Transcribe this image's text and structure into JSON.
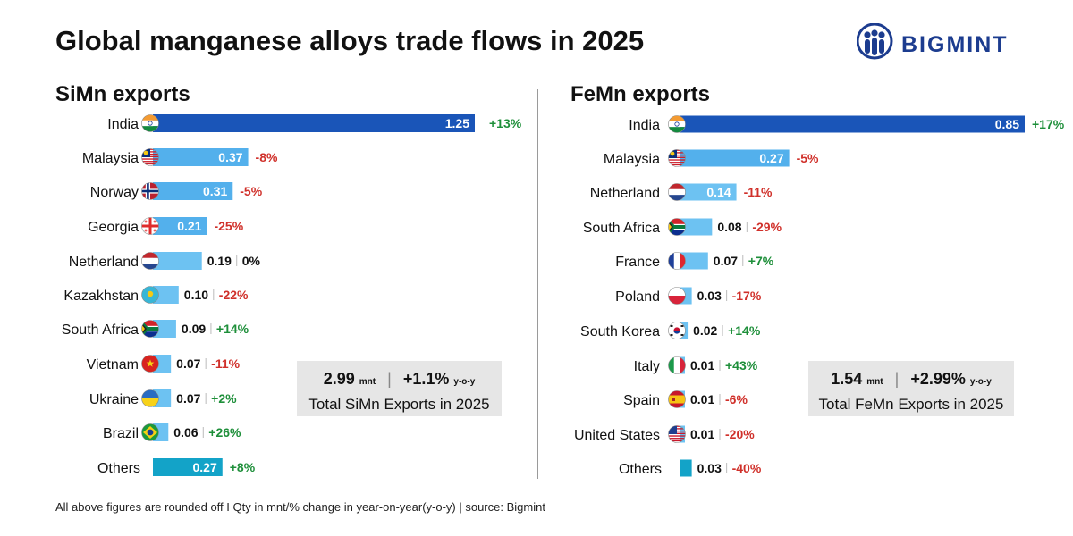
{
  "header": {
    "title": "Global manganese alloys trade flows in 2025",
    "logo_text": "BIGMINT",
    "logo_icon": "bigmint-people-icon"
  },
  "colors": {
    "bar_gradient": [
      "#1a55b8",
      "#1e6fd0",
      "#2c86d9",
      "#3b9be0",
      "#53b0ec",
      "#6dc2f2"
    ],
    "others_bar": "#13a3c8",
    "positive": "#1e8f3a",
    "negative": "#d0302a",
    "neutral": "#111111",
    "logo": "#1c3c8f"
  },
  "chart_data": [
    {
      "type": "bar",
      "orientation": "horizontal",
      "title": "SiMn exports",
      "unit": "mnt",
      "categories": [
        "India",
        "Malaysia",
        "Norway",
        "Georgia",
        "Netherland",
        "Kazakhstan",
        "South Africa",
        "Vietnam",
        "Ukraine",
        "Brazil",
        "Others"
      ],
      "values": [
        1.25,
        0.37,
        0.31,
        0.21,
        0.19,
        0.1,
        0.09,
        0.07,
        0.07,
        0.06,
        0.27
      ],
      "value_labels": [
        "1.25",
        "0.37",
        "0.31",
        "0.21",
        "0.19",
        "0.10",
        "0.09",
        "0.07",
        "0.07",
        "0.06",
        "0.27"
      ],
      "changes": [
        "+13%",
        "-8%",
        "-5%",
        "-25%",
        "0%",
        "-22%",
        "+14%",
        "-11%",
        "+2%",
        "+26%",
        "+8%"
      ],
      "flags": [
        "india-flag-icon",
        "malaysia-flag-icon",
        "norway-flag-icon",
        "georgia-flag-icon",
        "netherlands-flag-icon",
        "kazakhstan-flag-icon",
        "south-africa-flag-icon",
        "vietnam-flag-icon",
        "ukraine-flag-icon",
        "brazil-flag-icon",
        ""
      ],
      "xlim": [
        0,
        1.25
      ],
      "grid": false,
      "summary": {
        "total": "2.99",
        "unit": "mnt",
        "change": "+1.1%",
        "change_unit": "y-o-y",
        "caption": "Total SiMn Exports in 2025"
      }
    },
    {
      "type": "bar",
      "orientation": "horizontal",
      "title": "FeMn exports",
      "unit": "mnt",
      "categories": [
        "India",
        "Malaysia",
        "Netherland",
        "South Africa",
        "France",
        "Poland",
        "South Korea",
        "Italy",
        "Spain",
        "United States",
        "Others"
      ],
      "values": [
        0.85,
        0.27,
        0.14,
        0.08,
        0.07,
        0.03,
        0.02,
        0.01,
        0.01,
        0.01,
        0.03
      ],
      "value_labels": [
        "0.85",
        "0.27",
        "0.14",
        "0.08",
        "0.07",
        "0.03",
        "0.02",
        "0.01",
        "0.01",
        "0.01",
        "0.03"
      ],
      "changes": [
        "+17%",
        "-5%",
        "-11%",
        "-29%",
        "+7%",
        "-17%",
        "+14%",
        "+43%",
        "-6%",
        "-20%",
        "-40%"
      ],
      "flags": [
        "india-flag-icon",
        "malaysia-flag-icon",
        "netherlands-flag-icon",
        "south-africa-flag-icon",
        "france-flag-icon",
        "poland-flag-icon",
        "south-korea-flag-icon",
        "italy-flag-icon",
        "spain-flag-icon",
        "united-states-flag-icon",
        ""
      ],
      "xlim": [
        0,
        0.85
      ],
      "grid": false,
      "summary": {
        "total": "1.54",
        "unit": "mnt",
        "change": "+2.99%",
        "change_unit": "y-o-y",
        "caption": "Total FeMn Exports in 2025"
      }
    }
  ],
  "footer": {
    "note": "All above figures are rounded off  I  Qty in mnt/% change in year-on-year(y-o-y)  |  source: Bigmint"
  }
}
